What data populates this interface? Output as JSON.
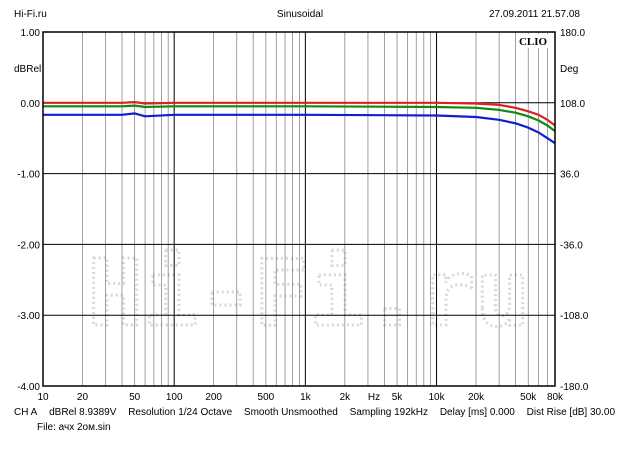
{
  "header": {
    "app_name": "Hi-Fi.ru",
    "title": "Sinusoidal",
    "timestamp": "27.09.2011 21.57.08"
  },
  "watermark": {
    "brand": "CLIO",
    "text": "Hi-Fi.ru"
  },
  "footer": {
    "channel": "CH A",
    "level": "dBRel 8.9389V",
    "resolution": "Resolution 1/24 Octave",
    "smooth": "Smooth Unsmoothed",
    "sampling": "Sampling 192kHz",
    "delay": "Delay [ms] 0.000",
    "dist_rise": "Dist Rise [dB] 30.00",
    "file": "File: ачх 2ом.sin"
  },
  "chart_data": {
    "type": "line",
    "x_scale": "log",
    "xlim": [
      10,
      80000
    ],
    "ylim": [
      -4.0,
      1.0
    ],
    "ylim_right": [
      -180.0,
      180.0
    ],
    "ylabel": "dBRel",
    "ylabel_right": "Deg",
    "xunit": "Hz",
    "x_ticks": [
      10,
      20,
      50,
      100,
      200,
      500,
      1000,
      2000,
      5000,
      10000,
      20000,
      50000,
      80000
    ],
    "x_tick_labels": [
      "10",
      "20",
      "50",
      "100",
      "200",
      "500",
      "1k",
      "2k",
      "5k",
      "10k",
      "20k",
      "50k",
      "80k"
    ],
    "y_ticks": [
      1.0,
      0.0,
      -1.0,
      -2.0,
      -3.0,
      -4.0
    ],
    "y_tick_labels": [
      "1.00",
      "0.00",
      "-1.00",
      "-2.00",
      "-3.00",
      "-4.00"
    ],
    "y_right_ticks": [
      180,
      108,
      36,
      -36,
      -108,
      -180
    ],
    "y_right_tick_labels": [
      "180.0",
      "108.0",
      "36.0",
      "-36.0",
      "-108.0",
      "-180.0"
    ],
    "grid": true,
    "series": [
      {
        "color": "#e02020",
        "x": [
          10,
          20,
          40,
          50,
          60,
          100,
          1000,
          10000,
          20000,
          30000,
          40000,
          50000,
          60000,
          70000,
          80000
        ],
        "y": [
          0.0,
          0.0,
          0.0,
          0.01,
          -0.01,
          0.0,
          0.0,
          0.0,
          -0.01,
          -0.03,
          -0.07,
          -0.12,
          -0.17,
          -0.24,
          -0.32
        ]
      },
      {
        "color": "#108a10",
        "x": [
          10,
          20,
          40,
          50,
          60,
          100,
          1000,
          10000,
          20000,
          30000,
          40000,
          50000,
          60000,
          70000,
          80000
        ],
        "y": [
          -0.05,
          -0.05,
          -0.05,
          -0.04,
          -0.06,
          -0.05,
          -0.05,
          -0.06,
          -0.07,
          -0.1,
          -0.14,
          -0.19,
          -0.25,
          -0.32,
          -0.4
        ]
      },
      {
        "color": "#1020d0",
        "x": [
          10,
          20,
          40,
          50,
          60,
          100,
          1000,
          10000,
          20000,
          30000,
          40000,
          50000,
          60000,
          70000,
          80000
        ],
        "y": [
          -0.17,
          -0.17,
          -0.17,
          -0.15,
          -0.19,
          -0.17,
          -0.17,
          -0.18,
          -0.2,
          -0.24,
          -0.29,
          -0.35,
          -0.42,
          -0.5,
          -0.57
        ]
      }
    ]
  }
}
